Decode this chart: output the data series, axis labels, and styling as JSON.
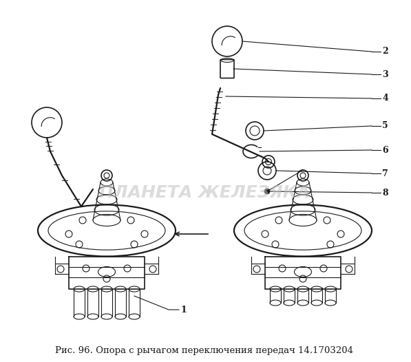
{
  "caption": "Рис. 96. Опора с рычагом переключения передач 14.1703204",
  "caption_fontsize": 9.5,
  "bg_color": "#ffffff",
  "line_color": "#1a1a1a",
  "watermark_text": "ПЛАНЕТА ЖЕЛЕЗЯКА",
  "watermark_color": "#c0c0c0",
  "figsize": [
    5.97,
    5.26
  ],
  "dpi": 100,
  "xlim": [
    0,
    597
  ],
  "ylim": [
    0,
    526
  ]
}
